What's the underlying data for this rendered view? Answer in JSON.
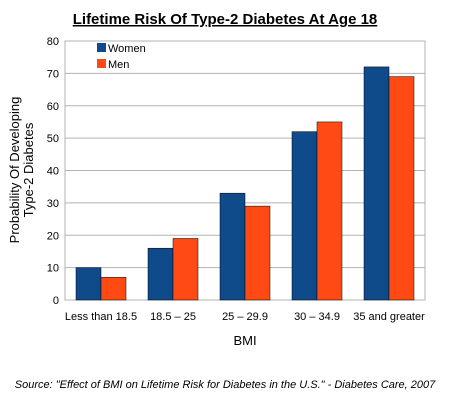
{
  "chart_data": {
    "type": "bar",
    "title": "Lifetime Risk Of Type-2 Diabetes At Age 18",
    "xlabel": "BMI",
    "ylabel_lines": [
      "Probability Of Developing",
      "Type-2 Diabetes"
    ],
    "categories": [
      "Less than 18.5",
      "18.5 – 25",
      "25 – 29.9",
      "30 – 34.9",
      "35 and greater"
    ],
    "series": [
      {
        "name": "Women",
        "color": "#0f4a8a",
        "values": [
          10,
          16,
          33,
          52,
          72
        ]
      },
      {
        "name": "Men",
        "color": "#ff4a14",
        "values": [
          7,
          19,
          29,
          55,
          69
        ]
      }
    ],
    "ylim": [
      0,
      80
    ],
    "yticks": [
      0,
      10,
      20,
      30,
      40,
      50,
      60,
      70,
      80
    ],
    "grid": true,
    "legend_position": "top-left",
    "source": "Source: \"Effect of BMI on Lifetime Risk for Diabetes in the U.S.\" - Diabetes Care, 2007"
  }
}
